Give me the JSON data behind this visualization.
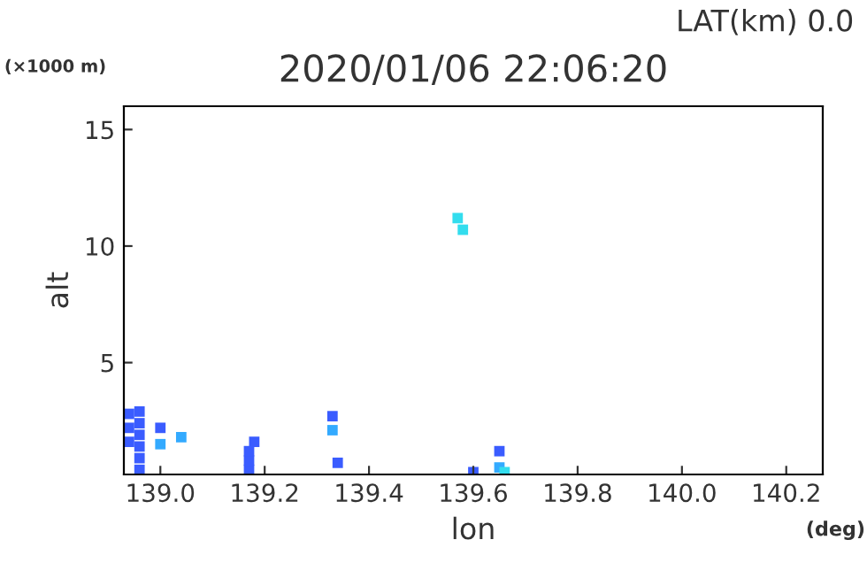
{
  "chart_data": {
    "type": "scatter",
    "title": "2020/01/06 22:06:20",
    "subtitle": "LAT(km) 0.0",
    "xlabel": "lon",
    "ylabel": "alt",
    "annotations": [
      "(×1000 m)",
      "(deg)"
    ],
    "xlim": [
      138.93,
      140.27
    ],
    "ylim": [
      0.2,
      16
    ],
    "xticks": [
      {
        "value": 139.0,
        "label": "139.0"
      },
      {
        "value": 139.2,
        "label": "139.2"
      },
      {
        "value": 139.4,
        "label": "139.4"
      },
      {
        "value": 139.6,
        "label": "139.6"
      },
      {
        "value": 139.8,
        "label": "139.8"
      },
      {
        "value": 140.0,
        "label": "140.0"
      },
      {
        "value": 140.2,
        "label": "140.2"
      }
    ],
    "yticks": [
      5,
      10,
      15
    ],
    "grid": false,
    "legend": false,
    "marker": "square",
    "series": [
      {
        "color": "#3a5cff",
        "x": [
          138.94,
          138.94,
          138.94,
          138.96,
          138.96,
          138.96,
          138.96,
          138.96,
          138.96,
          139.0,
          139.17,
          139.17,
          139.17,
          139.18,
          139.33,
          139.34,
          139.6,
          139.65
        ],
        "values": [
          1.6,
          2.2,
          2.8,
          0.4,
          0.9,
          1.4,
          1.9,
          2.4,
          2.9,
          2.2,
          0.4,
          0.8,
          1.2,
          1.6,
          2.7,
          0.7,
          0.3,
          1.2
        ]
      },
      {
        "color": "#33aaff",
        "x": [
          139.0,
          139.04,
          139.33,
          139.65
        ],
        "values": [
          1.5,
          1.8,
          2.1,
          0.5
        ]
      },
      {
        "color": "#33ddee",
        "x": [
          139.57,
          139.58,
          139.66
        ],
        "values": [
          11.2,
          10.7,
          0.3
        ]
      }
    ]
  }
}
